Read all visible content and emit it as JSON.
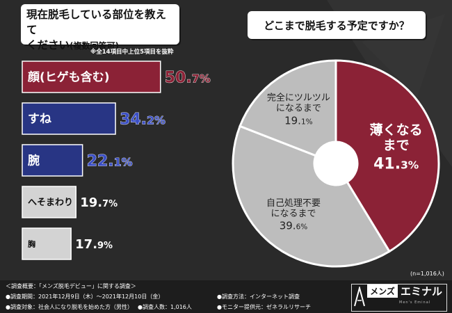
{
  "left_panel": {
    "question_line1": "現在脱毛している部位を教えて",
    "question_line2": "ください",
    "question_sub": "(複数回答可)",
    "note": "※全14項目中上位5項目を抜粋"
  },
  "right_panel": {
    "question": "どこまで脱毛する予定ですか？",
    "sample_size": "(n=1,016人)"
  },
  "colors": {
    "red": "#8b2236",
    "blue": "#283584",
    "gray": "#d3d3d3",
    "donut_gray": "#bdbdbd"
  },
  "chart_data": [
    {
      "type": "bar",
      "orientation": "horizontal",
      "title": "現在脱毛している部位を教えてください(複数回答可)",
      "categories": [
        "顔(ヒゲも含む)",
        "すね",
        "腕",
        "へそまわり",
        "胸"
      ],
      "values": [
        50.7,
        34.2,
        22.1,
        19.7,
        17.9
      ],
      "value_labels": [
        "50.7%",
        "34.2%",
        "22.1%",
        "19.7%",
        "17.9%"
      ],
      "colors": [
        "red",
        "blue",
        "blue",
        "gray",
        "gray"
      ]
    },
    {
      "type": "pie",
      "title": "どこまで脱毛する予定ですか？",
      "categories": [
        "薄くなるまで",
        "自己処理不要になるまで",
        "完全にツルツルになるまで"
      ],
      "label_lines": [
        [
          "薄くなる",
          "まで"
        ],
        [
          "自己処理不要",
          "になるまで"
        ],
        [
          "完全にツルツル",
          "になるまで"
        ]
      ],
      "values": [
        41.3,
        39.6,
        19.1
      ],
      "value_labels": [
        "41.3%",
        "39.6%",
        "19.1%"
      ],
      "colors": [
        "red",
        "donut_gray",
        "donut_gray"
      ]
    }
  ],
  "footer": {
    "overview": "＜調査概要：「メンズ脱毛デビュー」に関する調査＞",
    "period": "●調査期間：2021年12月9日（木）～2021年12月10日（金）",
    "target": "●調査対象：社会人になり脱毛を始めた方（男性）",
    "count": "●調査人数：1,016人",
    "method": "●調査方法：インターネット調査",
    "provider": "●モニター提供元：ゼネラルリサーチ"
  },
  "logo": {
    "tag": "メンズ",
    "name": "エミナル",
    "sub": "Men's Eminal"
  }
}
